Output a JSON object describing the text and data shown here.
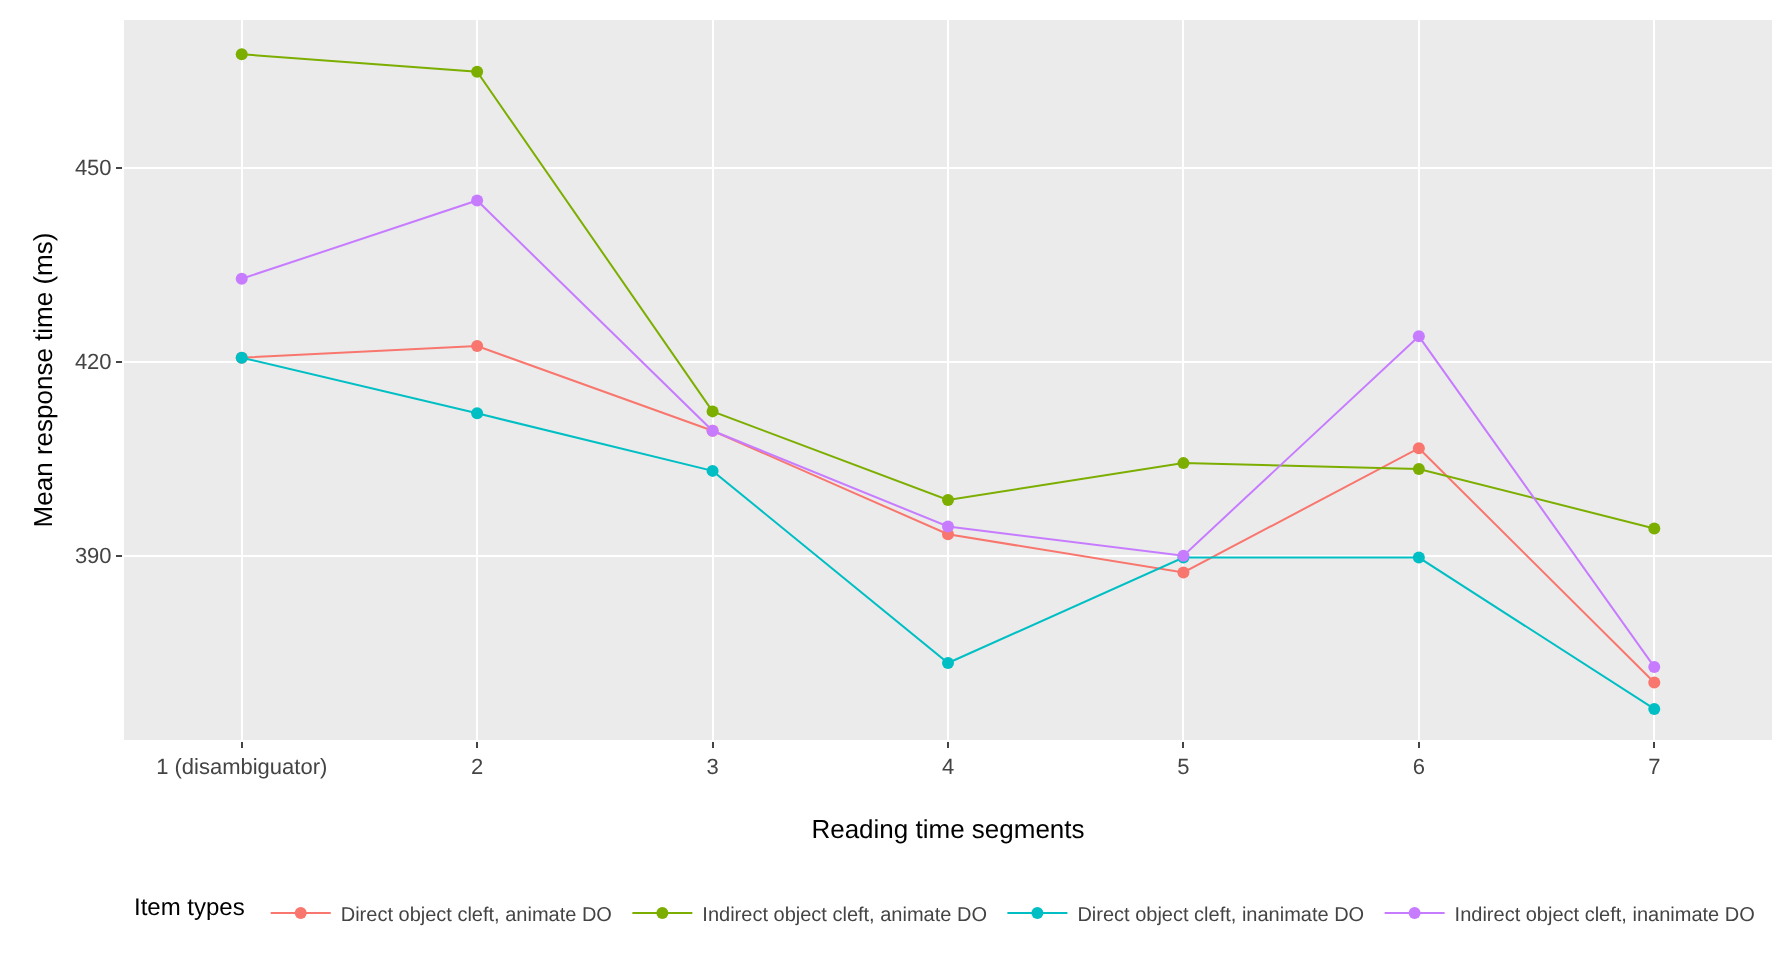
{
  "chart_data": {
    "type": "line",
    "xlabel": "Reading time segments",
    "ylabel": "Mean response time (ms)",
    "legend_title": "Item types",
    "categories": [
      "1 (disambiguator)",
      "2",
      "3",
      "4",
      "5",
      "6",
      "7"
    ],
    "series": [
      {
        "name": "Direct object cleft, animate DO",
        "color": "#f8766d",
        "values": [
          420.6,
          422.4,
          409.3,
          393.3,
          387.4,
          406.6,
          370.4
        ]
      },
      {
        "name": "Indirect object cleft, animate DO",
        "color": "#7cae00",
        "values": [
          467.5,
          464.8,
          412.3,
          398.6,
          404.3,
          403.4,
          394.2
        ]
      },
      {
        "name": "Direct object cleft, inanimate DO",
        "color": "#00bfc4",
        "values": [
          420.6,
          412,
          403.1,
          373.4,
          389.7,
          389.7,
          366.3
        ]
      },
      {
        "name": "Indirect object cleft, inanimate DO",
        "color": "#c77cff",
        "values": [
          432.8,
          444.9,
          409.3,
          394.5,
          390,
          423.9,
          372.8
        ]
      }
    ],
    "ylim": [
      361.5,
      472.8
    ],
    "yticks": [
      390,
      420,
      450
    ],
    "grid": true,
    "legend": "bottom",
    "marker": "circle",
    "line_style": "solid"
  }
}
